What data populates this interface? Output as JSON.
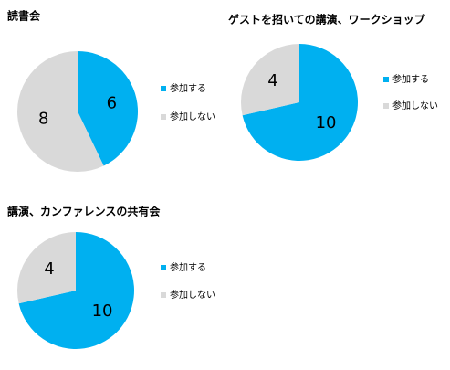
{
  "chart_data": [
    {
      "type": "pie",
      "title": "読書会",
      "categories": [
        "参加する",
        "参加しない"
      ],
      "values": [
        6,
        8
      ],
      "colors": [
        "#00b0f0",
        "#d9d9d9"
      ]
    },
    {
      "type": "pie",
      "title": "ゲストを招いての講演、ワークショップ",
      "categories": [
        "参加する",
        "参加しない"
      ],
      "values": [
        10,
        4
      ],
      "colors": [
        "#00b0f0",
        "#d9d9d9"
      ]
    },
    {
      "type": "pie",
      "title": "講演、カンファレンスの共有会",
      "categories": [
        "参加する",
        "参加しない"
      ],
      "values": [
        10,
        4
      ],
      "colors": [
        "#00b0f0",
        "#d9d9d9"
      ]
    }
  ]
}
